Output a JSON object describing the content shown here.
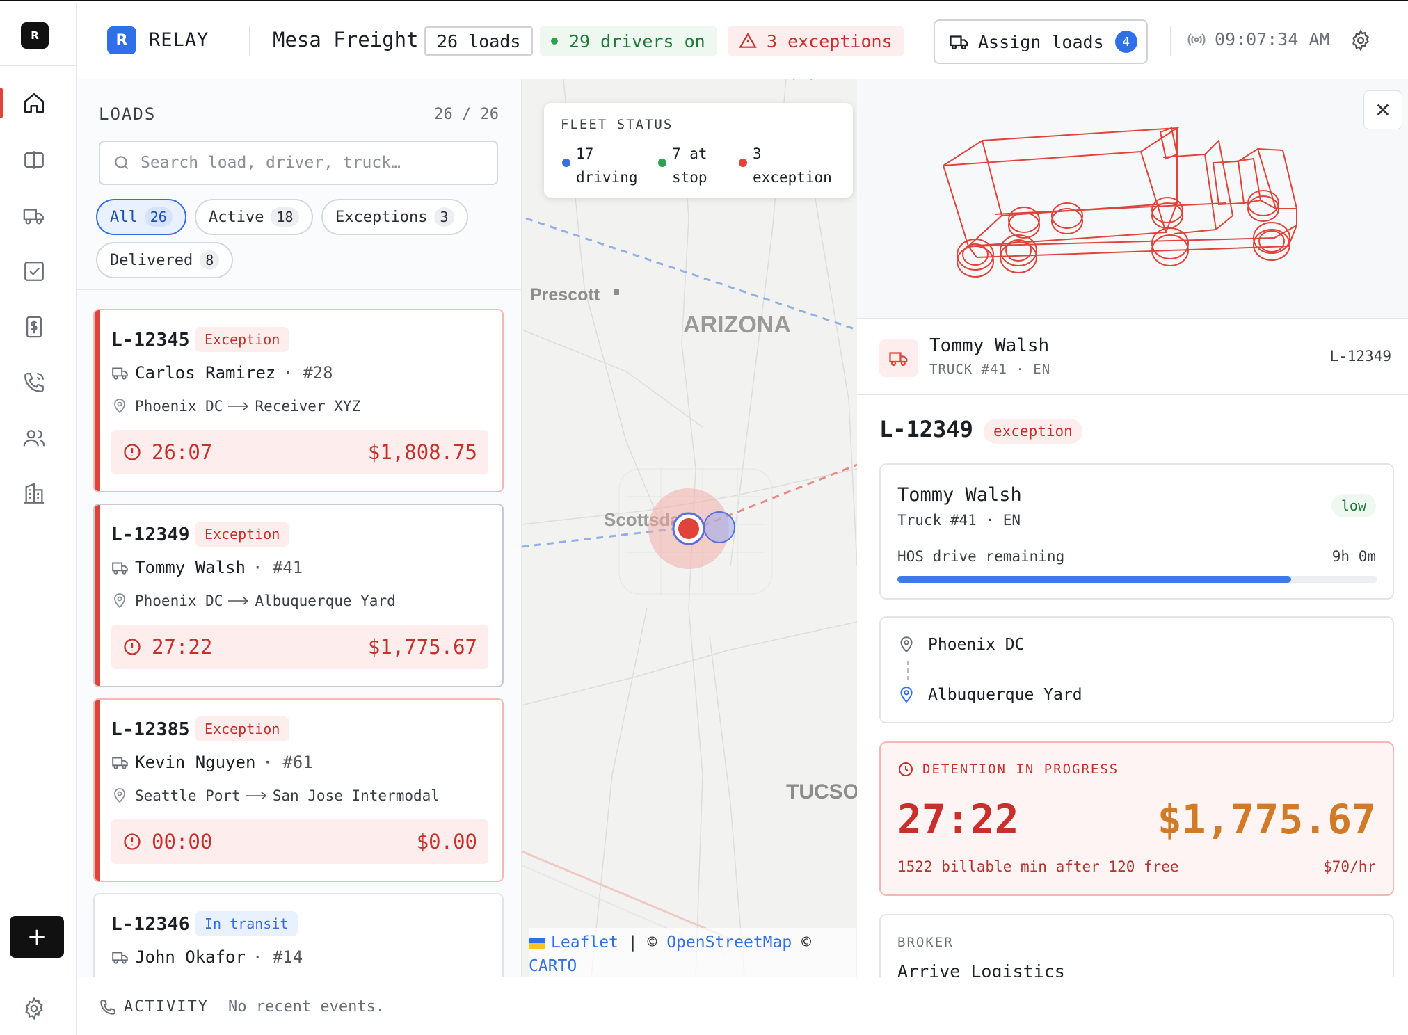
{
  "sidebar": {
    "logo": "R",
    "add_label": "+",
    "icons": [
      "home-icon",
      "board-icon",
      "truck-icon",
      "checklist-icon",
      "invoice-icon",
      "phone-icon",
      "users-icon",
      "building-icon"
    ],
    "settings_icon": "gear-icon"
  },
  "header": {
    "brand_mark": "R",
    "brand_name": "RELAY",
    "company": "Mesa Freight",
    "loads_pill": "26 loads",
    "drivers_pill": "29 drivers on",
    "exceptions_pill": "3 exceptions",
    "assign_label": "Assign loads",
    "assign_count": "4",
    "clock": "09:07:34 AM"
  },
  "loads": {
    "title": "LOADS",
    "count": "26 / 26",
    "search_placeholder": "Search load, driver, truck…",
    "filters": [
      {
        "label": "All",
        "count": "26"
      },
      {
        "label": "Active",
        "count": "18"
      },
      {
        "label": "Exceptions",
        "count": "3"
      },
      {
        "label": "Delivered",
        "count": "8"
      }
    ],
    "cards": [
      {
        "id": "L-12345",
        "status": "Exception",
        "driver": "Carlos Ramirez",
        "truck": "· #28",
        "origin": "Phoenix DC",
        "destination": "Receiver XYZ",
        "timer": "26:07",
        "amount": "$1,808.75"
      },
      {
        "id": "L-12349",
        "status": "Exception",
        "driver": "Tommy Walsh",
        "truck": "· #41",
        "origin": "Phoenix DC",
        "destination": "Albuquerque Yard",
        "timer": "27:22",
        "amount": "$1,775.67"
      },
      {
        "id": "L-12385",
        "status": "Exception",
        "driver": "Kevin Nguyen",
        "truck": "· #61",
        "origin": "Seattle Port",
        "destination": "San Jose Intermodal",
        "timer": "00:00",
        "amount": "$0.00"
      },
      {
        "id": "L-12346",
        "status": "In transit",
        "driver": "John Okafor",
        "truck": "· #14"
      }
    ]
  },
  "map": {
    "fleet_title": "FLEET STATUS",
    "driving": "17 driving",
    "driving_a": "17",
    "driving_b": "driving",
    "stop_a": "7 at",
    "stop_b": "stop",
    "exc_a": "3",
    "exc_b": "exception",
    "labels": {
      "prescott": "Prescott",
      "arizona": "ARIZONA",
      "scottsdale": "Scottsdale",
      "tucson": "TUCSO"
    },
    "attrib_leaflet": "Leaflet",
    "attrib_sep": "| ©",
    "attrib_osm": "OpenStreetMap",
    "attrib_tail": "©",
    "attrib_carto": "CARTO",
    "colors": {
      "driving": "#3b6fe0",
      "stop": "#2fa24f",
      "exception": "#e0433a"
    }
  },
  "detail": {
    "close": "✕",
    "driver": "Tommy Walsh",
    "truck_sub": "TRUCK #41 · EN",
    "load_id": "L-12349",
    "title": "L-12349",
    "status": "exception",
    "driver_box": {
      "name": "Tommy Walsh",
      "sub": "Truck #41 · EN",
      "risk": "low",
      "hos_label": "HOS drive remaining",
      "hos_value": "9h 0m",
      "hos_fraction": 0.82
    },
    "route": {
      "origin": "Phoenix DC",
      "destination": "Albuquerque Yard"
    },
    "detention": {
      "label": "DETENTION IN PROGRESS",
      "timer": "27:22",
      "amount": "$1,775.67",
      "note": "1522 billable min after 120 free",
      "rate": "$70/hr"
    },
    "broker": {
      "label": "BROKER",
      "value": "Arrive Logistics"
    }
  },
  "activity": {
    "label": "ACTIVITY",
    "value": "No recent events."
  }
}
